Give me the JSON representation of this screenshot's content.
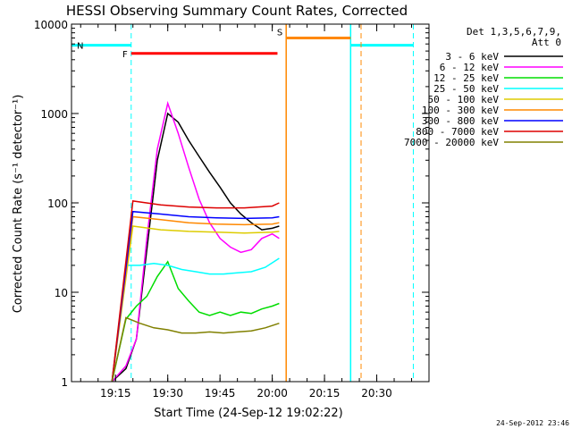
{
  "chart_data": {
    "type": "line",
    "title": "HESSI Observing Summary Count Rates, Corrected",
    "xlabel": "Start Time (24-Sep-12 19:02:22)",
    "ylabel": "Corrected Count Rate (s⁻¹ detector⁻¹)",
    "y_scale": "log",
    "ylim": [
      1,
      10000
    ],
    "xlim": [
      "19:02:22",
      "20:45:00"
    ],
    "x_ticks": [
      "19:15",
      "19:30",
      "19:45",
      "20:00",
      "20:15",
      "20:30"
    ],
    "y_ticks": [
      "1",
      "10",
      "100",
      "1000",
      "10000"
    ],
    "legend_position": "top-right",
    "legend_header": [
      "Det 1,3,5,6,7,9,",
      "Att 0"
    ],
    "timestamp": "24-Sep-2012 23:46",
    "series": [
      {
        "name": "3 - 6 keV",
        "color": "#000000",
        "x": [
          "19:14:00",
          "19:18:00",
          "19:21:00",
          "19:24:00",
          "19:27:00",
          "19:30:00",
          "19:33:00",
          "19:36:00",
          "19:39:00",
          "19:42:00",
          "19:45:00",
          "19:48:00",
          "19:51:00",
          "19:54:00",
          "19:57:00",
          "20:00:00",
          "20:02:00"
        ],
        "y": [
          1.0,
          1.4,
          3,
          30,
          300,
          1000,
          800,
          500,
          330,
          220,
          150,
          100,
          75,
          60,
          50,
          52,
          55
        ]
      },
      {
        "name": "6 - 12 keV",
        "color": "#ff00ff",
        "x": [
          "19:14:00",
          "19:18:00",
          "19:21:00",
          "19:24:00",
          "19:27:00",
          "19:30:00",
          "19:33:00",
          "19:36:00",
          "19:39:00",
          "19:42:00",
          "19:45:00",
          "19:48:00",
          "19:51:00",
          "19:54:00",
          "19:57:00",
          "20:00:00",
          "20:02:00"
        ],
        "y": [
          1.0,
          1.5,
          3,
          40,
          400,
          1300,
          600,
          250,
          110,
          60,
          40,
          32,
          28,
          30,
          40,
          45,
          40
        ]
      },
      {
        "name": "12 - 25 keV",
        "color": "#00dd00",
        "x": [
          "19:14:00",
          "19:18:00",
          "19:21:00",
          "19:24:00",
          "19:27:00",
          "19:30:00",
          "19:33:00",
          "19:36:00",
          "19:39:00",
          "19:42:00",
          "19:45:00",
          "19:48:00",
          "19:51:00",
          "19:54:00",
          "19:57:00",
          "20:00:00",
          "20:02:00"
        ],
        "y": [
          1,
          5,
          7,
          9,
          15,
          22,
          11,
          8,
          6,
          5.5,
          6,
          5.5,
          6,
          5.8,
          6.5,
          7,
          7.5
        ]
      },
      {
        "name": "25 - 50 keV",
        "color": "#00ffff",
        "x": [
          "19:14:00",
          "19:18:00",
          "19:22:00",
          "19:26:00",
          "19:30:00",
          "19:34:00",
          "19:38:00",
          "19:42:00",
          "19:46:00",
          "19:50:00",
          "19:54:00",
          "19:58:00",
          "20:02:00"
        ],
        "y": [
          1,
          20,
          20,
          21,
          20,
          18,
          17,
          16,
          16,
          16.5,
          17,
          19,
          24
        ]
      },
      {
        "name": "50 - 100 keV",
        "color": "#ddcc00",
        "x": [
          "19:14:00",
          "19:20:00",
          "19:28:00",
          "19:36:00",
          "19:44:00",
          "19:52:00",
          "20:00:00",
          "20:02:00"
        ],
        "y": [
          1,
          55,
          50,
          48,
          47,
          46,
          47,
          48
        ]
      },
      {
        "name": "100 - 300 keV",
        "color": "#ff8800",
        "x": [
          "19:14:00",
          "19:20:00",
          "19:28:00",
          "19:36:00",
          "19:44:00",
          "19:52:00",
          "20:00:00",
          "20:02:00"
        ],
        "y": [
          1,
          70,
          65,
          60,
          58,
          57,
          58,
          60
        ]
      },
      {
        "name": "300 - 800 keV",
        "color": "#0000ff",
        "x": [
          "19:14:00",
          "19:20:00",
          "19:28:00",
          "19:36:00",
          "19:44:00",
          "19:52:00",
          "20:00:00",
          "20:02:00"
        ],
        "y": [
          1,
          80,
          75,
          70,
          68,
          67,
          68,
          70
        ]
      },
      {
        "name": "800 - 7000 keV",
        "color": "#dd0000",
        "x": [
          "19:14:00",
          "19:20:00",
          "19:28:00",
          "19:36:00",
          "19:44:00",
          "19:52:00",
          "20:00:00",
          "20:02:00"
        ],
        "y": [
          1,
          105,
          95,
          90,
          88,
          88,
          92,
          100
        ]
      },
      {
        "name": "7000 - 20000 keV",
        "color": "#808000",
        "x": [
          "19:14:00",
          "19:18:00",
          "19:22:00",
          "19:26:00",
          "19:30:00",
          "19:34:00",
          "19:38:00",
          "19:42:00",
          "19:46:00",
          "19:50:00",
          "19:54:00",
          "19:58:00",
          "20:02:00"
        ],
        "y": [
          1,
          5.2,
          4.5,
          4.0,
          3.8,
          3.5,
          3.5,
          3.6,
          3.5,
          3.6,
          3.7,
          4.0,
          4.5
        ]
      }
    ],
    "flag_bars": [
      {
        "label": "N",
        "color": "#00ffff",
        "level": 5800,
        "segments": [
          [
            "19:02:22",
            "19:19:30"
          ],
          [
            "20:22:30",
            "20:40:30"
          ]
        ],
        "dashed_markers": [
          "19:19:30",
          "20:40:30"
        ],
        "solid_markers": [
          "20:22:30"
        ]
      },
      {
        "label": "F",
        "color": "#ff0000",
        "level": 4700,
        "segments": [
          [
            "19:19:30",
            "20:01:30"
          ]
        ]
      },
      {
        "label": "S",
        "color": "#ff8800",
        "level": 7000,
        "segments": [
          [
            "20:04:00",
            "20:22:30"
          ]
        ],
        "dashed_markers": [
          "20:25:30"
        ],
        "solid_markers": [
          "20:04:00"
        ]
      }
    ]
  }
}
